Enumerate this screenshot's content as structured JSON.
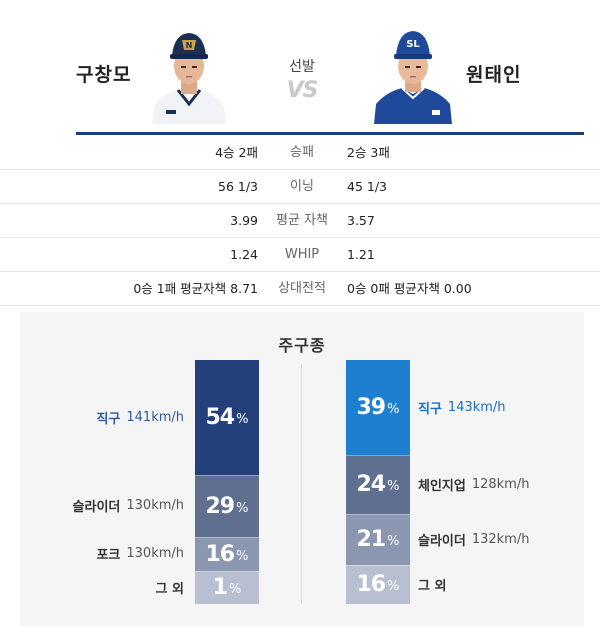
{
  "matchup": {
    "left_pitcher": "구창모",
    "right_pitcher": "원태인",
    "starter_label": "선발",
    "vs_text": "VS"
  },
  "stats": [
    {
      "left": "4승 2패",
      "label": "승패",
      "right": "2승 3패"
    },
    {
      "left": "56 1/3",
      "label": "이닝",
      "right": "45 1/3"
    },
    {
      "left": "3.99",
      "label": "평균 자책",
      "right": "3.57"
    },
    {
      "left": "1.24",
      "label": "WHIP",
      "right": "1.21"
    },
    {
      "left": "0승 1패 평균자책 8.71",
      "label": "상대전적",
      "right": "0승 0패 평균자책 0.00"
    }
  ],
  "pitch_mix": {
    "title": "주구종",
    "left": [
      {
        "name": "직구",
        "speed": "141km/h",
        "percent": 54,
        "color": "#23407a"
      },
      {
        "name": "슬라이더",
        "speed": "130km/h",
        "percent": 29,
        "color": "#5f6f8f"
      },
      {
        "name": "포크",
        "speed": "130km/h",
        "percent": 16,
        "color": "#8b97b0"
      },
      {
        "name": "그 외",
        "speed": "",
        "percent": 1,
        "color": "#b7bfd0"
      }
    ],
    "right": [
      {
        "name": "직구",
        "speed": "143km/h",
        "percent": 39,
        "color": "#1e7ed0"
      },
      {
        "name": "체인지업",
        "speed": "128km/h",
        "percent": 24,
        "color": "#5f6f8f"
      },
      {
        "name": "슬라이더",
        "speed": "132km/h",
        "percent": 21,
        "color": "#8b97b0"
      },
      {
        "name": "그 외",
        "speed": "",
        "percent": 16,
        "color": "#b7bfd0"
      }
    ],
    "percent_sign": "%"
  },
  "colors": {
    "header_line": "#1d3e7a",
    "left_cap": "#1b2f55",
    "right_cap": "#1f4a9c"
  }
}
